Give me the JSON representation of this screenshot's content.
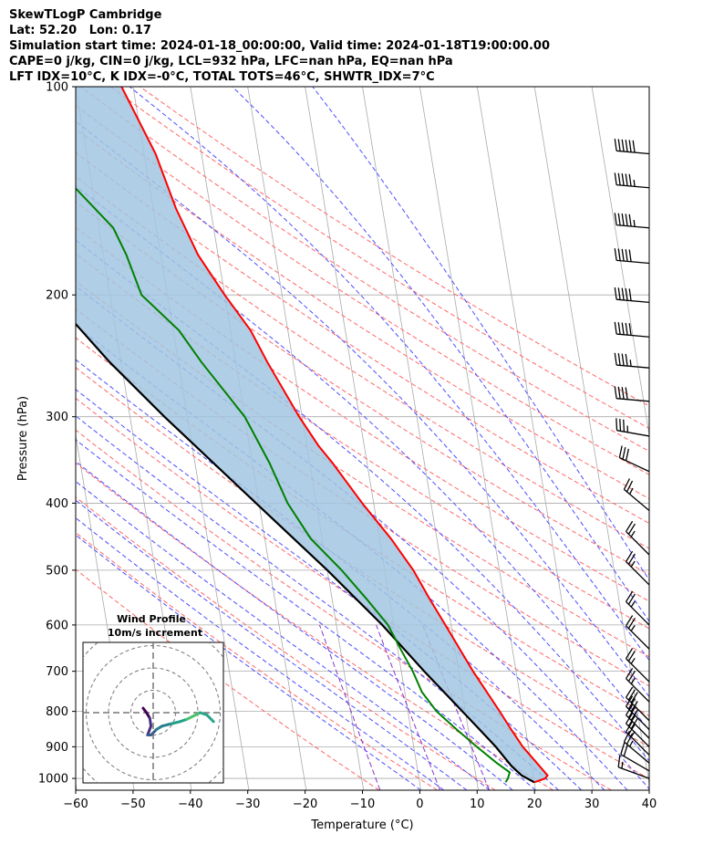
{
  "header": {
    "line1": "SkewTLogP Cambridge",
    "line2": "Lat: 52.20   Lon: 0.17",
    "line3": "Simulation start time: 2024-01-18_00:00:00, Valid time: 2024-01-18T19:00:00.00",
    "line4": "CAPE=0 j/kg, CIN=0 j/kg, LCL=932 hPa, LFC=nan hPa, EQ=nan hPa",
    "line5": "LFT IDX=10°C, K IDX=-0°C, TOTAL TOTS=46°C, SHWTR_IDX=7°C"
  },
  "chart_data": {
    "type": "line",
    "subtype": "skew-t log-p",
    "xlabel": "Temperature (°C)",
    "ylabel": "Pressure (hPa)",
    "xlim": [
      -60,
      40
    ],
    "ylim": [
      1040,
      100
    ],
    "yscale": "log",
    "x_ticks": [
      "−60",
      "−50",
      "−40",
      "−30",
      "−20",
      "−10",
      "0",
      "10",
      "20",
      "30",
      "40"
    ],
    "y_ticks": [
      "100",
      "200",
      "300",
      "400",
      "500",
      "600",
      "700",
      "800",
      "900",
      "1000"
    ],
    "grid": true,
    "colors": {
      "temperature": "#ff0000",
      "dewpoint": "#008000",
      "parcel": "#000000",
      "shading": "#a2c5e0",
      "dry_adiabat": "#ff6666",
      "moist_adiabat": "#4d4dff",
      "mixing_ratio": "#8833cc",
      "isotherm": "#aaaaaa"
    },
    "series": [
      {
        "key": "temperature",
        "points": [
          [
            1013,
            0
          ],
          [
            1000,
            2
          ],
          [
            990,
            2.5
          ],
          [
            950,
            1
          ],
          [
            900,
            -1
          ],
          [
            850,
            -2.5
          ],
          [
            800,
            -4
          ],
          [
            700,
            -7.5
          ],
          [
            600,
            -11
          ],
          [
            550,
            -13
          ],
          [
            500,
            -15
          ],
          [
            450,
            -18
          ],
          [
            400,
            -22
          ],
          [
            350,
            -26
          ],
          [
            330,
            -28
          ],
          [
            300,
            -30.5
          ],
          [
            250,
            -34.5
          ],
          [
            225,
            -36.5
          ],
          [
            200,
            -40
          ],
          [
            175,
            -43.5
          ],
          [
            150,
            -46
          ],
          [
            125,
            -48
          ],
          [
            100,
            -52
          ]
        ]
      },
      {
        "key": "dewpoint",
        "points": [
          [
            1013,
            -5
          ],
          [
            1000,
            -4.5
          ],
          [
            980,
            -4
          ],
          [
            950,
            -6
          ],
          [
            900,
            -9
          ],
          [
            850,
            -12
          ],
          [
            800,
            -15
          ],
          [
            750,
            -17
          ],
          [
            700,
            -18
          ],
          [
            650,
            -19.5
          ],
          [
            600,
            -21
          ],
          [
            550,
            -24
          ],
          [
            500,
            -27.5
          ],
          [
            450,
            -32
          ],
          [
            400,
            -35
          ],
          [
            350,
            -37
          ],
          [
            300,
            -40
          ],
          [
            250,
            -46
          ],
          [
            225,
            -49
          ],
          [
            200,
            -54.5
          ],
          [
            175,
            -56
          ],
          [
            160,
            -57.5
          ],
          [
            140,
            -63
          ],
          [
            100,
            -68
          ]
        ]
      },
      {
        "key": "parcel",
        "points": [
          [
            1013,
            0
          ],
          [
            990,
            -2
          ],
          [
            960,
            -3.5
          ],
          [
            932,
            -4.5
          ],
          [
            900,
            -5.7
          ],
          [
            850,
            -8
          ],
          [
            800,
            -10.5
          ],
          [
            700,
            -16
          ],
          [
            600,
            -22
          ],
          [
            500,
            -30
          ],
          [
            400,
            -40.5
          ],
          [
            300,
            -54
          ],
          [
            250,
            -62
          ],
          [
            200,
            -70.5
          ],
          [
            150,
            -80
          ],
          [
            120,
            -85
          ],
          [
            100,
            -89
          ]
        ]
      }
    ],
    "wind_barbs": [
      {
        "p": 1000,
        "dir": 290,
        "kt": 15
      },
      {
        "p": 975,
        "dir": 300,
        "kt": 20
      },
      {
        "p": 950,
        "dir": 310,
        "kt": 25
      },
      {
        "p": 925,
        "dir": 315,
        "kt": 25
      },
      {
        "p": 900,
        "dir": 315,
        "kt": 30
      },
      {
        "p": 875,
        "dir": 315,
        "kt": 30
      },
      {
        "p": 850,
        "dir": 315,
        "kt": 30
      },
      {
        "p": 825,
        "dir": 315,
        "kt": 30
      },
      {
        "p": 775,
        "dir": 315,
        "kt": 25
      },
      {
        "p": 725,
        "dir": 315,
        "kt": 25
      },
      {
        "p": 650,
        "dir": 315,
        "kt": 25
      },
      {
        "p": 600,
        "dir": 315,
        "kt": 25
      },
      {
        "p": 525,
        "dir": 315,
        "kt": 25
      },
      {
        "p": 475,
        "dir": 315,
        "kt": 25
      },
      {
        "p": 410,
        "dir": 310,
        "kt": 25
      },
      {
        "p": 360,
        "dir": 295,
        "kt": 30
      },
      {
        "p": 320,
        "dir": 280,
        "kt": 35
      },
      {
        "p": 285,
        "dir": 275,
        "kt": 40
      },
      {
        "p": 255,
        "dir": 275,
        "kt": 45
      },
      {
        "p": 230,
        "dir": 275,
        "kt": 50
      },
      {
        "p": 205,
        "dir": 275,
        "kt": 50
      },
      {
        "p": 180,
        "dir": 275,
        "kt": 50
      },
      {
        "p": 160,
        "dir": 275,
        "kt": 55
      },
      {
        "p": 140,
        "dir": 275,
        "kt": 55
      },
      {
        "p": 125,
        "dir": 275,
        "kt": 60
      }
    ],
    "hodograph": {
      "title": "Wind Profile",
      "subtitle": "10m/s increment",
      "ring_step_ms": 10,
      "points": [
        [
          -4.5,
          2
        ],
        [
          -3,
          0
        ],
        [
          -1.5,
          -2.5
        ],
        [
          -1,
          -6
        ],
        [
          -2.5,
          -10
        ],
        [
          -1,
          -10
        ],
        [
          1.5,
          -7.5
        ],
        [
          4,
          -6
        ],
        [
          8,
          -5
        ],
        [
          12,
          -4
        ],
        [
          15,
          -3
        ],
        [
          18,
          -1.5
        ],
        [
          21,
          0
        ],
        [
          24,
          -1
        ],
        [
          27,
          -4
        ]
      ]
    }
  }
}
